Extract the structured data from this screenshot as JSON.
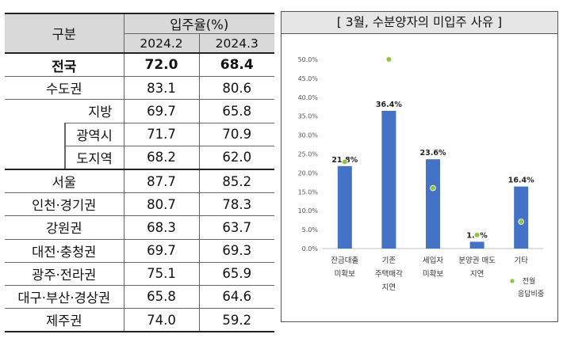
{
  "table": {
    "header": {
      "category": "구분",
      "group": "입주율(%)",
      "col1": "2024.2",
      "col2": "2024.3"
    },
    "rows": [
      {
        "label": "전국",
        "v1": "72.0",
        "v2": "68.4"
      },
      {
        "label": "수도권",
        "v1": "83.1",
        "v2": "80.6"
      },
      {
        "label": "지방",
        "v1": "69.7",
        "v2": "65.8"
      },
      {
        "label": "광역시",
        "v1": "71.7",
        "v2": "70.9"
      },
      {
        "label": "도지역",
        "v1": "68.2",
        "v2": "62.0"
      },
      {
        "label": "서울",
        "v1": "87.7",
        "v2": "85.2"
      },
      {
        "label": "인천·경기권",
        "v1": "80.7",
        "v2": "78.3"
      },
      {
        "label": "강원권",
        "v1": "68.3",
        "v2": "63.7"
      },
      {
        "label": "대전·충청권",
        "v1": "69.7",
        "v2": "69.3"
      },
      {
        "label": "광주·전라권",
        "v1": "75.1",
        "v2": "65.9"
      },
      {
        "label": "대구·부산·경상권",
        "v1": "65.8",
        "v2": "64.6"
      },
      {
        "label": "제주권",
        "v1": "74.0",
        "v2": "59.2"
      }
    ]
  },
  "chart_data": {
    "type": "bar",
    "title": "[ 3월, 수분양자의 미입주 사유 ]",
    "categories": [
      [
        "잔금대출",
        "미확보"
      ],
      [
        "기존",
        "주택매각",
        "지연"
      ],
      [
        "세입자",
        "미확보"
      ],
      [
        "분양권 매도",
        "지연"
      ],
      [
        "기타"
      ]
    ],
    "series": [
      {
        "values": [
          21.8,
          36.4,
          23.6,
          1.8,
          16.4
        ],
        "labels": [
          "21.8%",
          "36.4%",
          "23.6%",
          "1.8%",
          "16.4%"
        ],
        "color": "#4472c4"
      },
      {
        "name": "전월 응답비중",
        "name_lines": [
          "전월",
          "응답비중"
        ],
        "values": [
          22.9,
          50.0,
          16.0,
          3.6,
          7.1
        ],
        "color": "#8cc63f",
        "marker": "dot"
      }
    ],
    "y_ticks": [
      "0.0%",
      "5.0%",
      "10.0%",
      "15.0%",
      "20.0%",
      "25.0%",
      "30.0%",
      "35.0%",
      "40.0%",
      "45.0%",
      "50.0%"
    ],
    "ylim": [
      0,
      50
    ],
    "grid": false,
    "legend": "bottom-right"
  }
}
